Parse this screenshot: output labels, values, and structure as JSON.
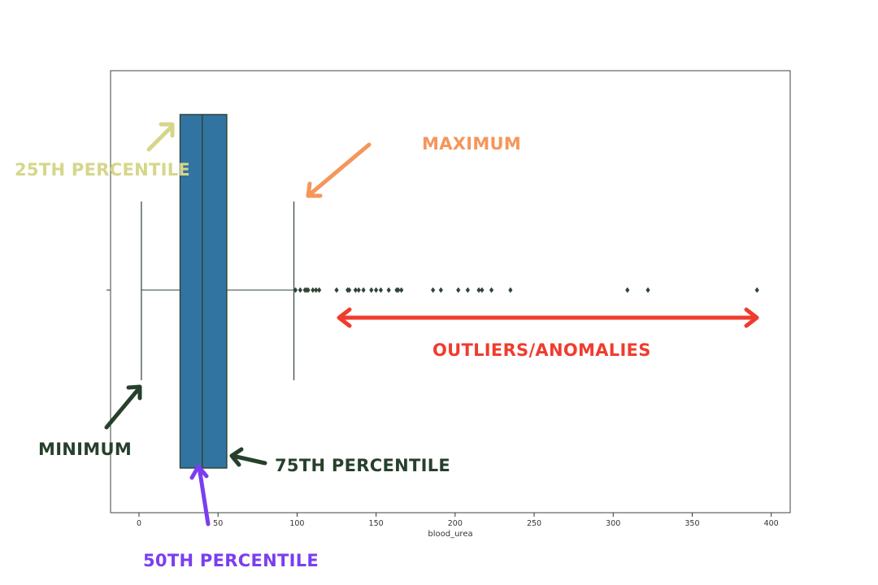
{
  "chart_data": {
    "type": "box",
    "variable": "blood_urea",
    "xlabel": "blood_urea",
    "xlim": [
      -18,
      412
    ],
    "x_ticks": [
      0,
      50,
      100,
      150,
      200,
      250,
      300,
      350,
      400
    ],
    "box": {
      "whisker_min": 1.5,
      "q1": 26,
      "median": 40,
      "q3": 55.5,
      "whisker_max": 98
    },
    "outliers": [
      99,
      102,
      105,
      106,
      107,
      110,
      112,
      114,
      125,
      132,
      133,
      137,
      139,
      142,
      147,
      150,
      153,
      158,
      163,
      164,
      166,
      186,
      191,
      202,
      208,
      215,
      217,
      223,
      235,
      309,
      322,
      391
    ],
    "colors": {
      "box_fill": "#3274a1",
      "line": "#2f4538",
      "outlier": "#2f4538",
      "frame": "#3a4a3a"
    }
  },
  "annotations": {
    "percentile_25": {
      "text": "25TH PERCENTILE",
      "color": "#d6d68a"
    },
    "maximum": {
      "text": "MAXIMUM",
      "color": "#f5965a"
    },
    "minimum": {
      "text": "MINIMUM",
      "color": "#26402c"
    },
    "percentile_75": {
      "text": "75TH PERCENTILE",
      "color": "#26402c"
    },
    "percentile_50": {
      "text": "50TH PERCENTILE",
      "color": "#7a3ef0"
    },
    "outliers": {
      "text": "OUTLIERS/ANOMALIES",
      "color": "#f03c2e"
    }
  }
}
